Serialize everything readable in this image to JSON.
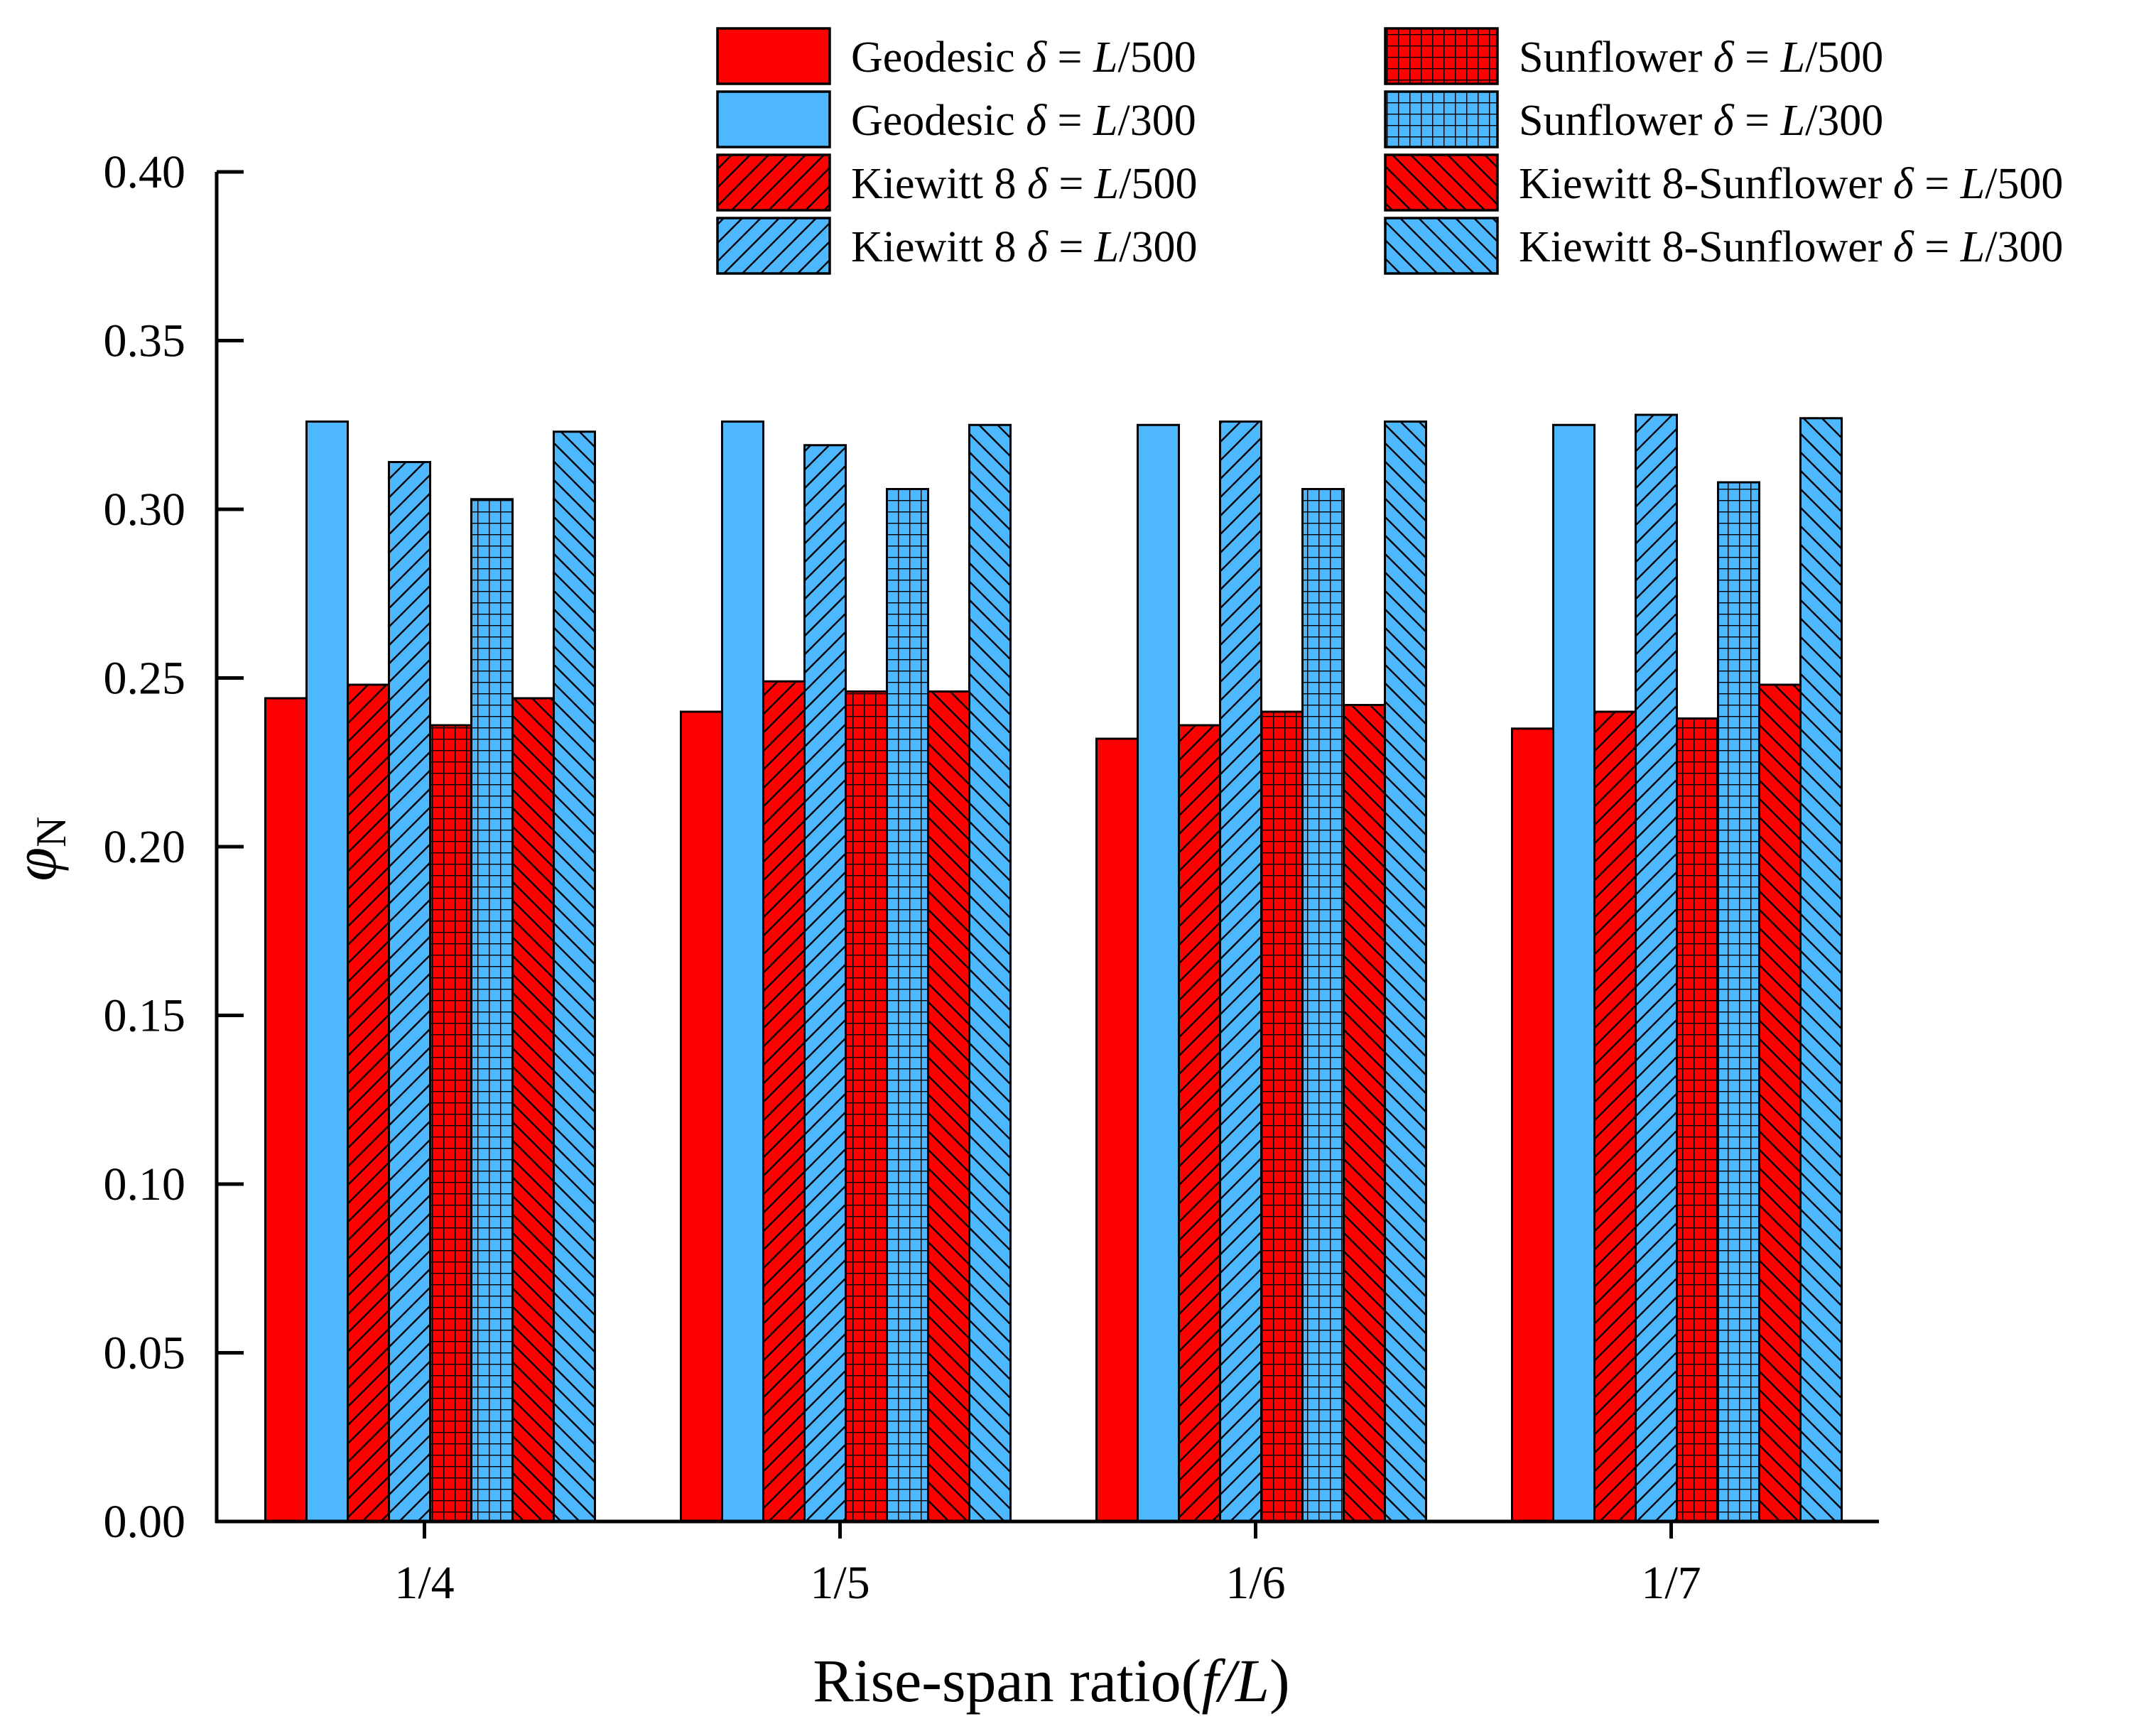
{
  "chart_data": {
    "type": "bar",
    "title": "",
    "xlabel": {
      "main": "Rise-span ratio(",
      "italic": "f/L",
      "close": ")"
    },
    "ylabel": {
      "symbol": "φ",
      "subscript": "N"
    },
    "ylim": [
      0,
      0.4
    ],
    "yticks": [
      "0.00",
      "0.05",
      "0.10",
      "0.15",
      "0.20",
      "0.25",
      "0.30",
      "0.35",
      "0.40"
    ],
    "categories": [
      "1/4",
      "1/5",
      "1/6",
      "1/7"
    ],
    "colors": {
      "red": "#ff0000",
      "blue": "#4db8ff",
      "stroke": "#000000"
    },
    "series": [
      {
        "name": "Geodesic δ = L/500",
        "label": {
          "pre": "Geodesic ",
          "delta": "δ",
          "eq": " = ",
          "L": "L",
          "num": "/500"
        },
        "color": "red",
        "pattern": "solid",
        "values": [
          0.244,
          0.24,
          0.232,
          0.235
        ]
      },
      {
        "name": "Geodesic δ = L/300",
        "label": {
          "pre": "Geodesic ",
          "delta": "δ",
          "eq": " = ",
          "L": "L",
          "num": "/300"
        },
        "color": "blue",
        "pattern": "solid",
        "values": [
          0.326,
          0.326,
          0.325,
          0.325
        ]
      },
      {
        "name": "Kiewitt 8 δ = L/500",
        "label": {
          "pre": "Kiewitt 8 ",
          "delta": "δ",
          "eq": " = ",
          "L": "L",
          "num": "/500"
        },
        "color": "red",
        "pattern": "diag-right",
        "values": [
          0.248,
          0.249,
          0.236,
          0.24
        ]
      },
      {
        "name": "Kiewitt 8 δ = L/300",
        "label": {
          "pre": "Kiewitt 8 ",
          "delta": "δ",
          "eq": " = ",
          "L": "L",
          "num": "/300"
        },
        "color": "blue",
        "pattern": "diag-right",
        "values": [
          0.314,
          0.319,
          0.326,
          0.328
        ]
      },
      {
        "name": "Sunflower δ = L/500",
        "label": {
          "pre": "Sunflower ",
          "delta": "δ",
          "eq": " = ",
          "L": "L",
          "num": "/500"
        },
        "color": "red",
        "pattern": "grid",
        "values": [
          0.236,
          0.246,
          0.24,
          0.238
        ]
      },
      {
        "name": "Sunflower δ = L/300",
        "label": {
          "pre": "Sunflower ",
          "delta": "δ",
          "eq": " = ",
          "L": "L",
          "num": "/300"
        },
        "color": "blue",
        "pattern": "grid",
        "values": [
          0.303,
          0.306,
          0.306,
          0.308
        ]
      },
      {
        "name": "Kiewitt 8-Sunflower δ = L/500",
        "label": {
          "pre": "Kiewitt 8-Sunflower ",
          "delta": "δ",
          "eq": " = ",
          "L": "L",
          "num": "/500"
        },
        "color": "red",
        "pattern": "diag-left",
        "values": [
          0.244,
          0.246,
          0.242,
          0.248
        ]
      },
      {
        "name": "Kiewitt 8-Sunflower δ = L/300",
        "label": {
          "pre": "Kiewitt 8-Sunflower ",
          "delta": "δ",
          "eq": " = ",
          "L": "L",
          "num": "/300"
        },
        "color": "blue",
        "pattern": "diag-left",
        "values": [
          0.323,
          0.325,
          0.326,
          0.327
        ]
      }
    ],
    "legend_position": "top-right"
  }
}
